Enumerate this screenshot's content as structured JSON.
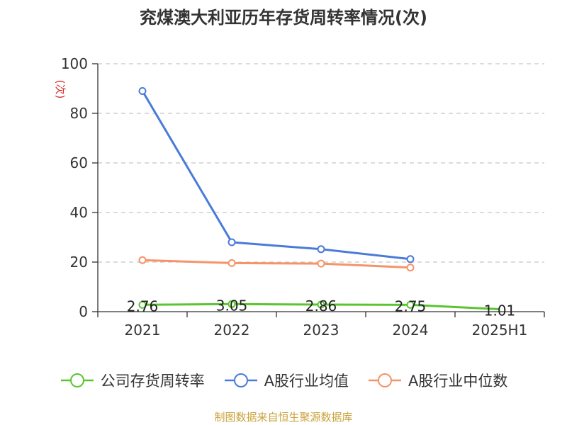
{
  "chart_data": {
    "type": "line",
    "title": "兖煤澳大利亚历年存货周转率情况(次)",
    "ylabel": "(次)",
    "categories": [
      "2021",
      "2022",
      "2023",
      "2024",
      "2025H1"
    ],
    "ylim": [
      0,
      100
    ],
    "yticks": [
      0,
      20,
      40,
      60,
      80,
      100
    ],
    "grid": true,
    "legend_position": "bottom",
    "series": [
      {
        "name": "公司存货周转率",
        "color": "#5ac52f",
        "values": [
          2.76,
          3.05,
          2.86,
          2.75,
          1.01
        ],
        "labels": [
          "2.76",
          "3.05",
          "2.86",
          "2.75",
          "1.01"
        ]
      },
      {
        "name": "A股行业均值",
        "color": "#4a7bd9",
        "values": [
          89.0,
          28.0,
          25.2,
          21.2,
          null
        ]
      },
      {
        "name": "A股行业中位数",
        "color": "#f59467",
        "values": [
          20.8,
          19.6,
          19.4,
          17.8,
          null
        ]
      }
    ]
  },
  "source": "制图数据来自恒生聚源数据库"
}
